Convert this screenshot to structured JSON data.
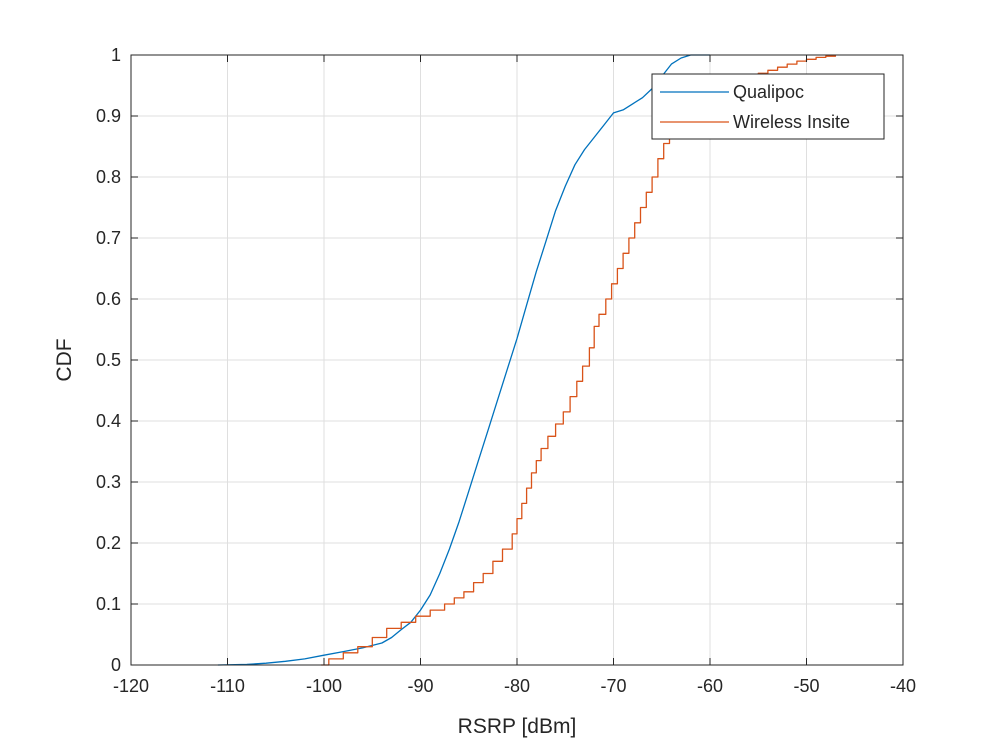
{
  "chart_data": {
    "type": "line",
    "title": "",
    "xlabel": "RSRP [dBm]",
    "ylabel": "CDF",
    "xlim": [
      -120,
      -40
    ],
    "ylim": [
      0,
      1
    ],
    "xticks": [
      -120,
      -110,
      -100,
      -90,
      -80,
      -70,
      -60,
      -50,
      -40
    ],
    "yticks": [
      0,
      0.1,
      0.2,
      0.3,
      0.4,
      0.5,
      0.6,
      0.7,
      0.8,
      0.9,
      1
    ],
    "grid": true,
    "legend": {
      "placement": "top-right",
      "entries": [
        "Qualipoc",
        "Wireless Insite"
      ]
    },
    "series": [
      {
        "name": "Qualipoc",
        "color": "#0072BD",
        "step": false,
        "x": [
          -111,
          -108,
          -106,
          -104,
          -102,
          -100,
          -98,
          -96,
          -94,
          -93,
          -92,
          -91,
          -90,
          -89,
          -88,
          -87,
          -86,
          -85,
          -84,
          -83,
          -82,
          -81,
          -80,
          -79,
          -78,
          -77,
          -76,
          -75,
          -74,
          -73,
          -72,
          -71,
          -70,
          -69,
          -68,
          -67,
          -66,
          -65,
          -64,
          -63,
          -62,
          -61,
          -60
        ],
        "y": [
          0,
          0.001,
          0.003,
          0.006,
          0.01,
          0.016,
          0.022,
          0.028,
          0.036,
          0.045,
          0.058,
          0.07,
          0.09,
          0.115,
          0.15,
          0.19,
          0.235,
          0.285,
          0.335,
          0.385,
          0.435,
          0.485,
          0.535,
          0.59,
          0.645,
          0.695,
          0.745,
          0.785,
          0.82,
          0.845,
          0.865,
          0.885,
          0.905,
          0.91,
          0.92,
          0.93,
          0.945,
          0.965,
          0.985,
          0.995,
          1,
          1,
          1
        ]
      },
      {
        "name": "Wireless Insite",
        "color": "#D95319",
        "step": true,
        "x": [
          -100.3,
          -99.5,
          -98,
          -96.5,
          -95,
          -93.5,
          -92,
          -90.5,
          -89,
          -87.5,
          -86.5,
          -85.5,
          -84.5,
          -83.5,
          -82.5,
          -81.5,
          -80.5,
          -80,
          -79.5,
          -79,
          -78.5,
          -78,
          -77.5,
          -76.8,
          -76,
          -75.2,
          -74.5,
          -73.8,
          -73.2,
          -72.5,
          -72,
          -71.5,
          -70.8,
          -70.2,
          -69.6,
          -69,
          -68.4,
          -67.8,
          -67.2,
          -66.6,
          -66,
          -65.4,
          -64.8,
          -64.2,
          -63.5,
          -63,
          -62.5,
          -62,
          -61.2,
          -60.4,
          -59.6,
          -58.8,
          -58,
          -57,
          -56,
          -55,
          -54,
          -53,
          -52,
          -51,
          -50,
          -49,
          -48,
          -47
        ],
        "y": [
          0,
          0.01,
          0.02,
          0.03,
          0.045,
          0.06,
          0.07,
          0.08,
          0.09,
          0.1,
          0.11,
          0.12,
          0.135,
          0.15,
          0.17,
          0.19,
          0.215,
          0.24,
          0.265,
          0.29,
          0.315,
          0.335,
          0.355,
          0.375,
          0.395,
          0.415,
          0.44,
          0.465,
          0.49,
          0.52,
          0.555,
          0.575,
          0.6,
          0.625,
          0.65,
          0.675,
          0.7,
          0.725,
          0.75,
          0.775,
          0.8,
          0.83,
          0.855,
          0.875,
          0.89,
          0.905,
          0.915,
          0.925,
          0.935,
          0.94,
          0.945,
          0.95,
          0.955,
          0.96,
          0.965,
          0.97,
          0.975,
          0.98,
          0.985,
          0.99,
          0.993,
          0.996,
          0.998,
          1
        ]
      }
    ]
  }
}
